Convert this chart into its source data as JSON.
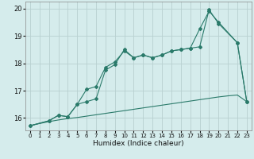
{
  "xlabel": "Humidex (Indice chaleur)",
  "xlim": [
    -0.5,
    23.5
  ],
  "ylim": [
    15.55,
    20.25
  ],
  "yticks": [
    16,
    17,
    18,
    19,
    20
  ],
  "xticks": [
    0,
    1,
    2,
    3,
    4,
    5,
    6,
    7,
    8,
    9,
    10,
    11,
    12,
    13,
    14,
    15,
    16,
    17,
    18,
    19,
    20,
    21,
    22,
    23
  ],
  "bg_color": "#d5ecec",
  "grid_color": "#b8d0d0",
  "line_color": "#2a7a6a",
  "lines": [
    {
      "x": [
        0,
        1,
        2,
        3,
        4,
        5,
        6,
        7,
        8,
        9,
        10,
        11,
        12,
        13,
        14,
        15,
        16,
        17,
        18,
        19,
        20,
        21,
        22,
        23
      ],
      "y": [
        15.72,
        15.8,
        15.87,
        15.93,
        15.98,
        16.02,
        16.07,
        16.12,
        16.17,
        16.22,
        16.27,
        16.32,
        16.37,
        16.42,
        16.47,
        16.52,
        16.57,
        16.62,
        16.67,
        16.72,
        16.77,
        16.81,
        16.84,
        16.6
      ],
      "marker": false
    },
    {
      "x": [
        0,
        2,
        3,
        4,
        5,
        6,
        7,
        8,
        9,
        10,
        11,
        12,
        13,
        14,
        15,
        16,
        17,
        18,
        19,
        20,
        22,
        23
      ],
      "y": [
        15.72,
        15.9,
        16.1,
        16.05,
        16.5,
        17.05,
        17.15,
        17.85,
        18.05,
        18.45,
        18.2,
        18.3,
        18.2,
        18.3,
        18.45,
        18.5,
        18.55,
        19.25,
        19.9,
        19.5,
        18.75,
        16.6
      ],
      "marker": true
    },
    {
      "x": [
        0,
        2,
        3,
        4,
        5,
        6,
        7,
        8,
        9,
        10,
        11,
        12,
        13,
        14,
        15,
        16,
        17,
        18,
        19,
        20,
        22,
        23
      ],
      "y": [
        15.72,
        15.9,
        16.1,
        16.05,
        16.5,
        16.6,
        16.7,
        17.75,
        17.95,
        18.5,
        18.2,
        18.3,
        18.2,
        18.3,
        18.45,
        18.5,
        18.55,
        18.6,
        19.95,
        19.45,
        18.75,
        16.6
      ],
      "marker": true
    }
  ]
}
